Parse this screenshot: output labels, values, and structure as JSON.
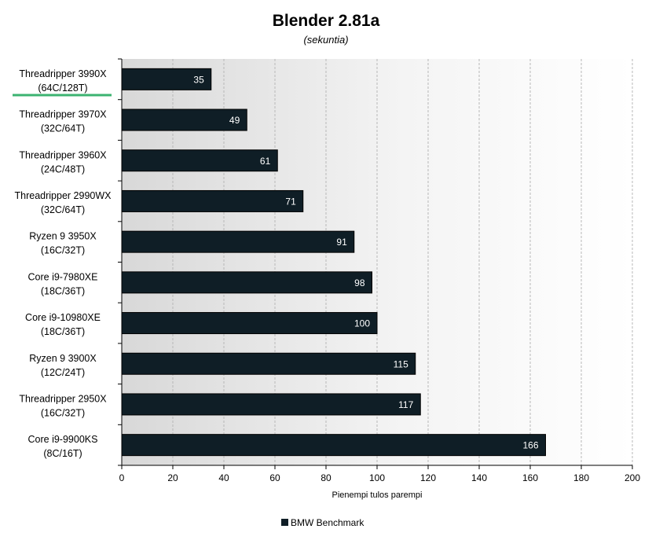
{
  "chart_data": {
    "type": "bar",
    "orientation": "horizontal",
    "title": "Blender 2.81a",
    "subtitle": "(sekuntia)",
    "xlabel": "Pienempi tulos parempi",
    "xlim": [
      0,
      200
    ],
    "xticks": [
      0,
      20,
      40,
      60,
      80,
      100,
      120,
      140,
      160,
      180,
      200
    ],
    "categories": [
      [
        "Threadripper 3990X",
        "(64C/128T)"
      ],
      [
        "Threadripper 3970X",
        "(32C/64T)"
      ],
      [
        "Threadripper 3960X",
        "(24C/48T)"
      ],
      [
        "Threadripper 2990WX",
        "(32C/64T)"
      ],
      [
        "Ryzen 9 3950X",
        "(16C/32T)"
      ],
      [
        "Core i9-7980XE",
        "(18C/36T)"
      ],
      [
        "Core i9-10980XE",
        "(18C/36T)"
      ],
      [
        "Ryzen 9 3900X",
        "(12C/24T)"
      ],
      [
        "Threadripper 2950X",
        "(16C/32T)"
      ],
      [
        "Core i9-9900KS",
        "(8C/16T)"
      ]
    ],
    "series": [
      {
        "name": "BMW Benchmark",
        "values": [
          35,
          49,
          61,
          71,
          91,
          98,
          100,
          115,
          117,
          166
        ],
        "color": "#0f1e26"
      }
    ],
    "highlight_index": 0,
    "highlight_color": "#3cb371",
    "grid": true,
    "legend": "bottom-center"
  }
}
